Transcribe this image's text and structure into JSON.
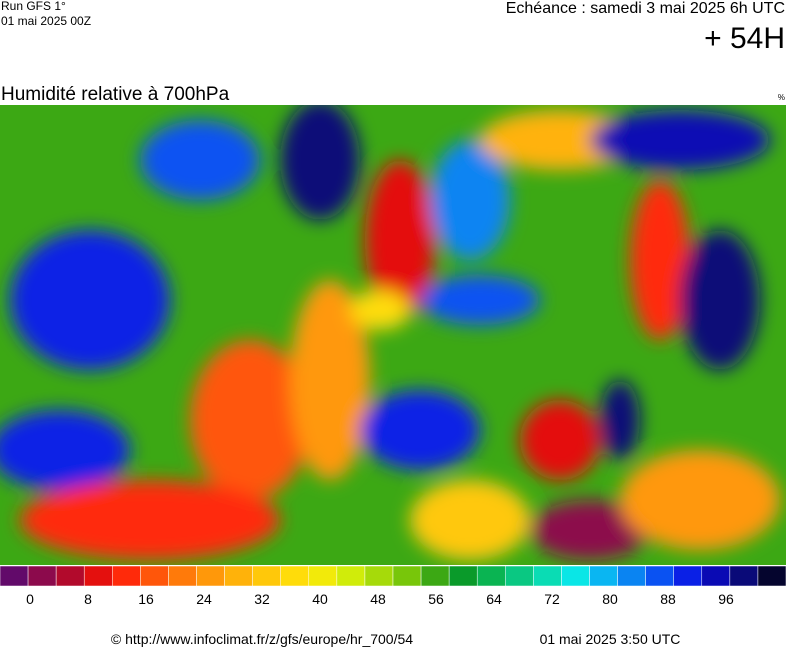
{
  "header": {
    "run": "Run GFS 1°",
    "run_date": "01 mai 2025 00Z",
    "valid": "Echéance : samedi 3 mai 2025 6h UTC",
    "lead": "+ 54H"
  },
  "map": {
    "title": "Humidité relative à 700hPa",
    "unit": "%"
  },
  "colorbar": {
    "colors": [
      "#620a6a",
      "#8c0a4c",
      "#b20a2c",
      "#e4100e",
      "#ff2a0a",
      "#ff560a",
      "#ff7a0a",
      "#ff980a",
      "#ffb20a",
      "#ffc80a",
      "#ffdc0a",
      "#f2ea0a",
      "#d0ec0a",
      "#a6da0a",
      "#78c60a",
      "#3ca814",
      "#0a9a2a",
      "#0ab452",
      "#0ac882",
      "#0adcb4",
      "#0ae6e6",
      "#0ab6f2",
      "#0a84f2",
      "#0a52f2",
      "#0a20e6",
      "#0a0ab4",
      "#0a0a78",
      "#05052e"
    ],
    "ticks": [
      0,
      8,
      16,
      24,
      32,
      40,
      48,
      56,
      64,
      72,
      80,
      88,
      96
    ]
  },
  "footer": {
    "source": "© http://www.infoclimat.fr/z/gfs/europe/hr_700/54",
    "generated": "01 mai 2025  3:50 UTC"
  }
}
